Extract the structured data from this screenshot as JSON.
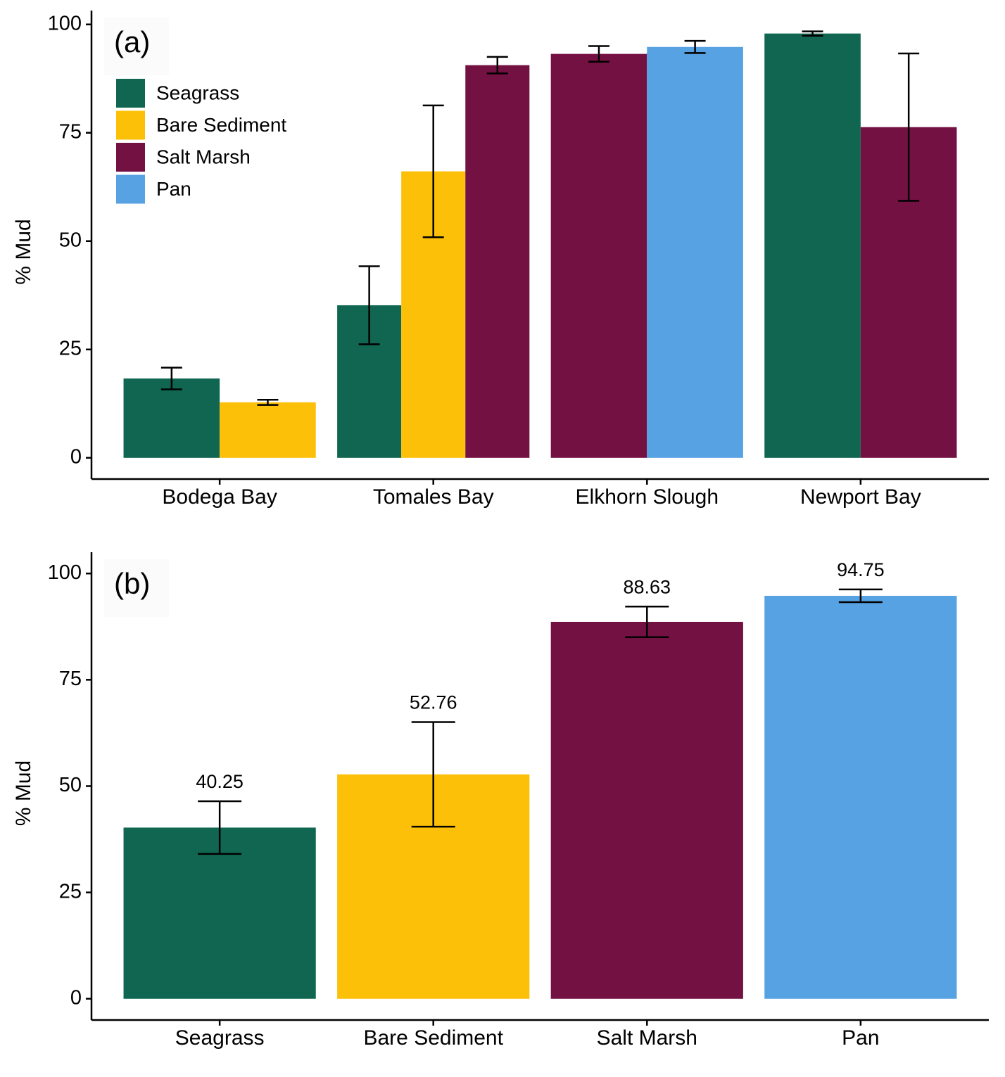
{
  "chart_data": [
    {
      "type": "bar",
      "annotation": "(a)",
      "ylabel": "% Mud",
      "categories": [
        "Bodega Bay",
        "Tomales Bay",
        "Elkhorn Slough",
        "Newport Bay"
      ],
      "series": [
        {
          "name": "Seagrass",
          "color": "#106650",
          "values": [
            18.3,
            35.2,
            null,
            97.9
          ],
          "errors": [
            2.5,
            9.0,
            null,
            0.5
          ]
        },
        {
          "name": "Bare Sediment",
          "color": "#fcc009",
          "values": [
            12.8,
            66.1,
            null,
            null
          ],
          "errors": [
            0.6,
            15.2,
            null,
            null
          ]
        },
        {
          "name": "Salt Marsh",
          "color": "#741143",
          "values": [
            null,
            90.6,
            93.2,
            76.3
          ],
          "errors": [
            null,
            1.9,
            1.8,
            17.0
          ]
        },
        {
          "name": "Pan",
          "color": "#57a2e3",
          "values": [
            null,
            null,
            94.8,
            null
          ],
          "errors": [
            null,
            null,
            1.4,
            null
          ]
        }
      ],
      "ylim": [
        -4.9,
        103.2
      ],
      "yticks": [
        0,
        25,
        50,
        75,
        100
      ],
      "legend": "top-left"
    },
    {
      "type": "bar",
      "annotation": "(b)",
      "ylabel": "% Mud",
      "categories": [
        "Seagrass",
        "Bare Sediment",
        "Salt Marsh",
        "Pan"
      ],
      "values": [
        40.25,
        52.76,
        88.63,
        94.75
      ],
      "errors": [
        6.2,
        12.3,
        3.6,
        1.5
      ],
      "colors": [
        "#106650",
        "#fcc009",
        "#741143",
        "#57a2e3"
      ],
      "ylim": [
        -5,
        105
      ],
      "yticks": [
        0,
        25,
        50,
        75,
        100
      ]
    }
  ]
}
